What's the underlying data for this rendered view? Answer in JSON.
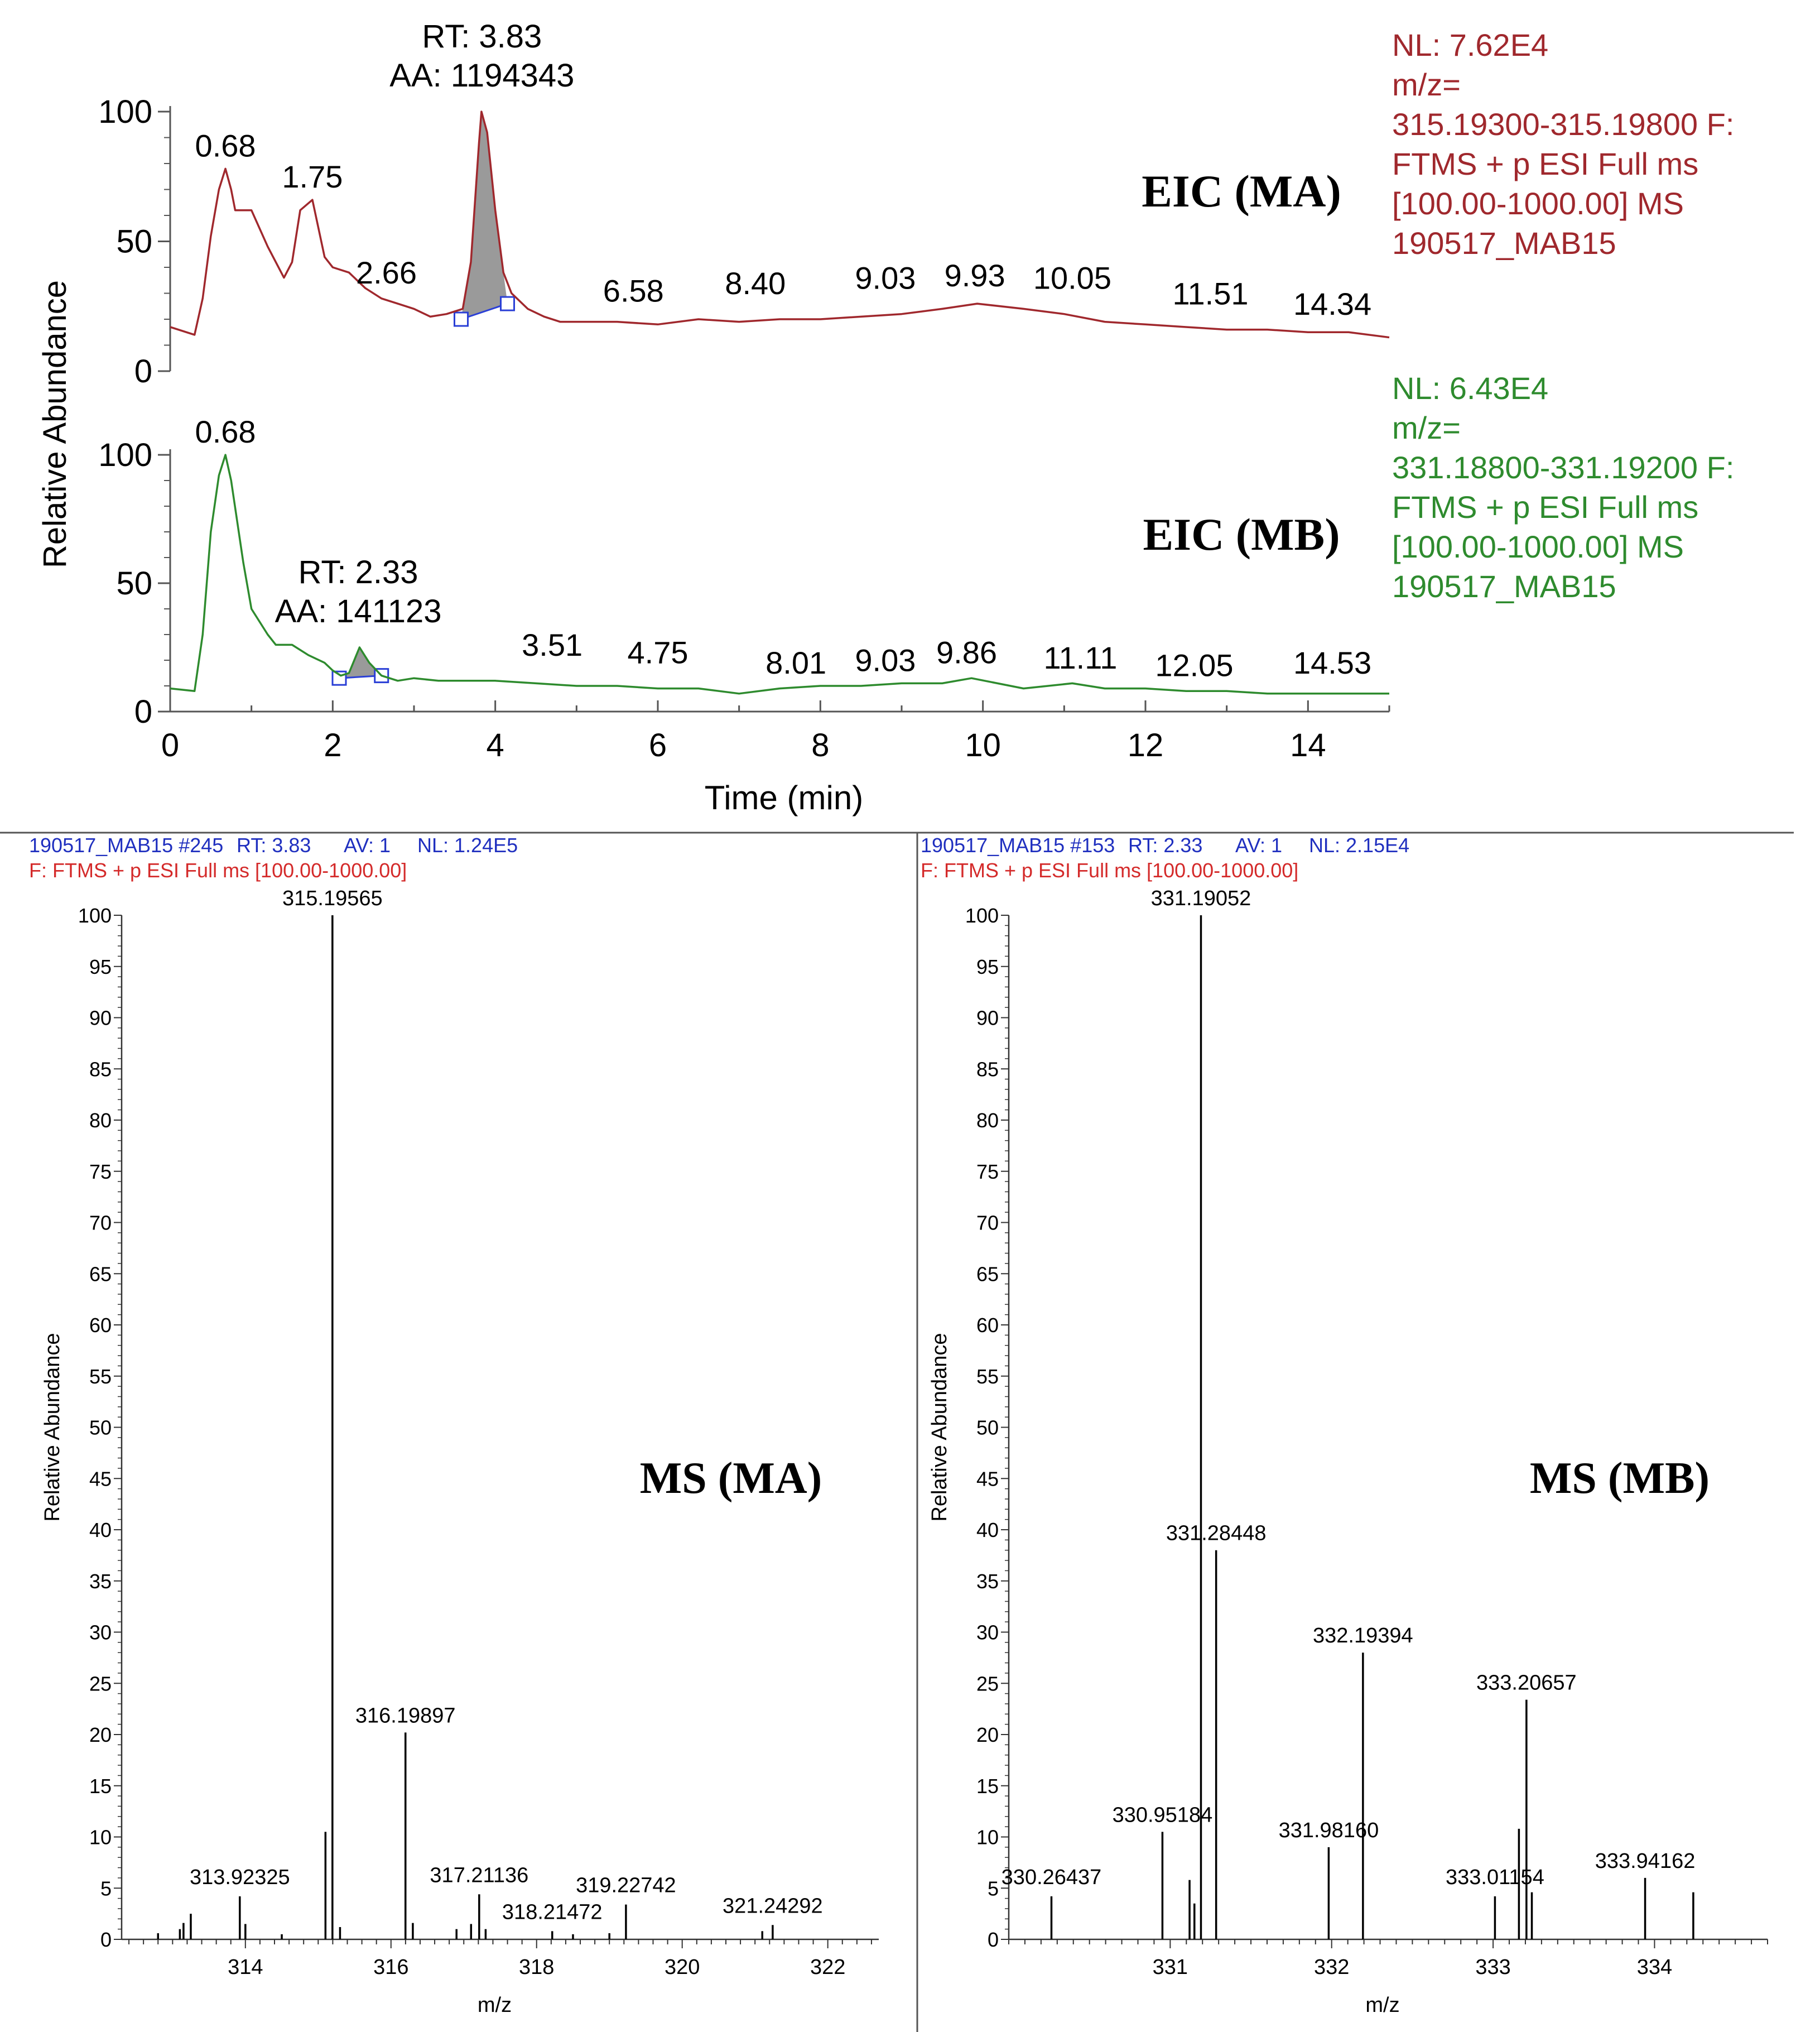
{
  "chart_data": [
    {
      "type": "line",
      "title": "EIC (MA)",
      "xlabel": "",
      "ylabel": "Relative Abundance",
      "xlim": [
        0,
        15
      ],
      "ylim": [
        0,
        100
      ],
      "x_ticks": [],
      "y_ticks": [
        "0",
        "50",
        "100"
      ],
      "color": "#a0282d",
      "info": [
        "NL: 7.62E4",
        "m/z=",
        "315.19300-315.19800 F:",
        "FTMS + p ESI Full ms",
        "[100.00-1000.00]  MS",
        "190517_MAB15"
      ],
      "peak": {
        "rt_label": "RT: 3.83",
        "aa_label": "AA: 1194343",
        "x_start": 3.58,
        "x_end": 4.15,
        "y_start": 20,
        "y_end": 26
      },
      "labels": [
        {
          "text": "0.68",
          "x": 0.68,
          "y": 78
        },
        {
          "text": "1.75",
          "x": 1.75,
          "y": 66
        },
        {
          "text": "2.66",
          "x": 2.66,
          "y": 29
        },
        {
          "text": "6.58",
          "x": 5.7,
          "y": 22
        },
        {
          "text": "8.40",
          "x": 7.2,
          "y": 25
        },
        {
          "text": "9.03",
          "x": 8.8,
          "y": 27
        },
        {
          "text": "9.93",
          "x": 9.9,
          "y": 28
        },
        {
          "text": "10.05",
          "x": 11.1,
          "y": 27
        },
        {
          "text": "11.51",
          "x": 12.8,
          "y": 21
        },
        {
          "text": "14.34",
          "x": 14.3,
          "y": 17
        }
      ],
      "series": [
        {
          "x": [
            0,
            0.3,
            0.4,
            0.5,
            0.6,
            0.68,
            0.75,
            0.8,
            1.0,
            1.2,
            1.3,
            1.4,
            1.5,
            1.6,
            1.75,
            1.9,
            2.0,
            2.2,
            2.4,
            2.6,
            2.8,
            3.0,
            3.2,
            3.4,
            3.6,
            3.7,
            3.8,
            3.83,
            3.9,
            4.0,
            4.1,
            4.2,
            4.4,
            4.6,
            4.8,
            5.0,
            5.5,
            6.0,
            6.5,
            7.0,
            7.5,
            8.0,
            8.5,
            9.0,
            9.5,
            9.93,
            10.5,
            11.0,
            11.5,
            12.0,
            12.5,
            13.0,
            13.5,
            14.0,
            14.5,
            15.0
          ],
          "y": [
            17,
            14,
            28,
            52,
            70,
            78,
            70,
            62,
            62,
            48,
            42,
            36,
            42,
            62,
            66,
            44,
            40,
            38,
            32,
            28,
            26,
            24,
            21,
            22,
            24,
            42,
            88,
            100,
            92,
            62,
            38,
            30,
            24,
            21,
            19,
            19,
            19,
            18,
            20,
            19,
            20,
            20,
            21,
            22,
            24,
            26,
            24,
            22,
            19,
            18,
            17,
            16,
            16,
            15,
            15,
            13
          ]
        }
      ]
    },
    {
      "type": "line",
      "title": "EIC (MB)",
      "xlabel": "Time (min)",
      "ylabel": "Relative Abundance",
      "xlim": [
        0,
        15
      ],
      "ylim": [
        0,
        100
      ],
      "x_ticks": [
        "0",
        "2",
        "4",
        "6",
        "8",
        "10",
        "12",
        "14"
      ],
      "y_ticks": [
        "0",
        "50",
        "100"
      ],
      "color": "#2e8b2e",
      "info": [
        "NL: 6.43E4",
        "m/z=",
        "331.18800-331.19200 F:",
        "FTMS + p ESI Full ms",
        "[100.00-1000.00]  MS",
        "190517_MAB15"
      ],
      "peak": {
        "rt_label": "RT: 2.33",
        "aa_label": "AA: 141123",
        "x_start": 2.08,
        "x_end": 2.6,
        "y_start": 13,
        "y_end": 14
      },
      "labels": [
        {
          "text": "0.68",
          "x": 0.68,
          "y": 100
        },
        {
          "text": "3.51",
          "x": 4.7,
          "y": 17
        },
        {
          "text": "4.75",
          "x": 6.0,
          "y": 14
        },
        {
          "text": "8.01",
          "x": 7.7,
          "y": 10
        },
        {
          "text": "9.03",
          "x": 8.8,
          "y": 11
        },
        {
          "text": "9.86",
          "x": 9.8,
          "y": 14
        },
        {
          "text": "11.11",
          "x": 11.2,
          "y": 12
        },
        {
          "text": "12.05",
          "x": 12.6,
          "y": 9
        },
        {
          "text": "14.53",
          "x": 14.3,
          "y": 10
        }
      ],
      "series": [
        {
          "x": [
            0,
            0.3,
            0.4,
            0.5,
            0.6,
            0.68,
            0.75,
            0.9,
            1.0,
            1.2,
            1.3,
            1.5,
            1.7,
            1.9,
            2.0,
            2.1,
            2.2,
            2.33,
            2.45,
            2.6,
            2.8,
            3.0,
            3.3,
            3.5,
            4.0,
            4.5,
            5.0,
            5.5,
            6.0,
            6.5,
            7.0,
            7.5,
            8.0,
            8.5,
            9.0,
            9.5,
            9.86,
            10.5,
            11.1,
            11.5,
            12.0,
            12.5,
            13.0,
            13.5,
            14.0,
            14.5,
            15.0
          ],
          "y": [
            9,
            8,
            30,
            70,
            92,
            100,
            90,
            58,
            40,
            30,
            26,
            26,
            22,
            19,
            16,
            14,
            15,
            25,
            19,
            14,
            12,
            13,
            12,
            12,
            12,
            11,
            10,
            10,
            9,
            9,
            7,
            9,
            10,
            10,
            11,
            11,
            13,
            9,
            11,
            9,
            9,
            8,
            8,
            7,
            7,
            7,
            7
          ]
        }
      ]
    },
    {
      "type": "bar",
      "title": "MS (MA)",
      "header_line1": [
        {
          "text": "190517_MAB15 #245",
          "color": "#1f2fbf"
        },
        {
          "text": "RT: 3.83",
          "color": "#1f2fbf"
        },
        {
          "text": "AV: 1",
          "color": "#1f2fbf"
        },
        {
          "text": "NL: 1.24E5",
          "color": "#1f2fbf"
        }
      ],
      "header_line2": "F: FTMS + p ESI Full ms [100.00-1000.00]",
      "xlabel": "m/z",
      "ylabel": "Relative Abundance",
      "xlim": [
        312.3,
        322.7
      ],
      "ylim": [
        0,
        100
      ],
      "x_ticks": [
        "314",
        "316",
        "318",
        "320",
        "322"
      ],
      "y_ticks": [
        "0",
        "5",
        "10",
        "15",
        "20",
        "25",
        "30",
        "35",
        "40",
        "45",
        "50",
        "55",
        "60",
        "65",
        "70",
        "75",
        "80",
        "85",
        "90",
        "95",
        "100"
      ],
      "peaks": [
        {
          "mz": 312.8,
          "y": 0.6
        },
        {
          "mz": 313.1,
          "y": 1.0
        },
        {
          "mz": 313.15,
          "y": 1.6
        },
        {
          "mz": 313.25,
          "y": 2.5
        },
        {
          "mz": 313.92325,
          "y": 4.2
        },
        {
          "mz": 314.0,
          "y": 1.5
        },
        {
          "mz": 314.5,
          "y": 0.5
        },
        {
          "mz": 315.1,
          "y": 10.5
        },
        {
          "mz": 315.19565,
          "y": 100
        },
        {
          "mz": 315.3,
          "y": 1.2
        },
        {
          "mz": 316.19897,
          "y": 20.2
        },
        {
          "mz": 316.3,
          "y": 1.6
        },
        {
          "mz": 316.9,
          "y": 1.0
        },
        {
          "mz": 317.1,
          "y": 1.5
        },
        {
          "mz": 317.21136,
          "y": 4.4
        },
        {
          "mz": 317.3,
          "y": 1.0
        },
        {
          "mz": 318.21472,
          "y": 0.8
        },
        {
          "mz": 318.5,
          "y": 0.5
        },
        {
          "mz": 319.22742,
          "y": 3.4
        },
        {
          "mz": 319.0,
          "y": 0.6
        },
        {
          "mz": 321.1,
          "y": 0.8
        },
        {
          "mz": 321.24292,
          "y": 1.4
        }
      ],
      "labels": [
        {
          "text": "315.19565",
          "mz": 315.19565,
          "y": 100
        },
        {
          "text": "316.19897",
          "mz": 316.19897,
          "y": 20.2
        },
        {
          "text": "313.92325",
          "mz": 313.92325,
          "y": 4.2
        },
        {
          "text": "317.21136",
          "mz": 317.21136,
          "y": 4.4
        },
        {
          "text": "318.21472",
          "mz": 318.21472,
          "y": 0.8
        },
        {
          "text": "319.22742",
          "mz": 319.22742,
          "y": 3.4
        },
        {
          "text": "321.24292",
          "mz": 321.24292,
          "y": 1.4
        }
      ]
    },
    {
      "type": "bar",
      "title": "MS (MB)",
      "header_line1": [
        {
          "text": "190517_MAB15 #153",
          "color": "#1f2fbf"
        },
        {
          "text": "RT: 2.33",
          "color": "#1f2fbf"
        },
        {
          "text": "AV: 1",
          "color": "#1f2fbf"
        },
        {
          "text": "NL: 2.15E4",
          "color": "#1f2fbf"
        }
      ],
      "header_line2": "F: FTMS + p ESI Full ms [100.00-1000.00]",
      "xlabel": "m/z",
      "ylabel": "Relative Abundance",
      "xlim": [
        330.0,
        334.7
      ],
      "ylim": [
        0,
        100
      ],
      "x_ticks": [
        "331",
        "332",
        "333",
        "334"
      ],
      "y_ticks": [
        "0",
        "5",
        "10",
        "15",
        "20",
        "25",
        "30",
        "35",
        "40",
        "45",
        "50",
        "55",
        "60",
        "65",
        "70",
        "75",
        "80",
        "85",
        "90",
        "95",
        "100"
      ],
      "peaks": [
        {
          "mz": 330.26437,
          "y": 4.2
        },
        {
          "mz": 330.95184,
          "y": 10.5
        },
        {
          "mz": 331.12,
          "y": 5.8
        },
        {
          "mz": 331.15,
          "y": 3.5
        },
        {
          "mz": 331.19052,
          "y": 100
        },
        {
          "mz": 331.28448,
          "y": 38.0
        },
        {
          "mz": 331.9816,
          "y": 9.0
        },
        {
          "mz": 332.19394,
          "y": 28.0
        },
        {
          "mz": 333.01154,
          "y": 4.2
        },
        {
          "mz": 333.16,
          "y": 10.8
        },
        {
          "mz": 333.20657,
          "y": 23.4
        },
        {
          "mz": 333.24,
          "y": 4.6
        },
        {
          "mz": 333.94162,
          "y": 6.0
        },
        {
          "mz": 334.24,
          "y": 4.6
        }
      ],
      "labels": [
        {
          "text": "331.19052",
          "mz": 331.19052,
          "y": 100
        },
        {
          "text": "331.28448",
          "mz": 331.28448,
          "y": 38.0
        },
        {
          "text": "332.19394",
          "mz": 332.19394,
          "y": 28.0
        },
        {
          "text": "333.20657",
          "mz": 333.20657,
          "y": 23.4
        },
        {
          "text": "330.95184",
          "mz": 330.95184,
          "y": 10.5
        },
        {
          "text": "331.98160",
          "mz": 331.9816,
          "y": 9.0
        },
        {
          "text": "330.26437",
          "mz": 330.26437,
          "y": 4.2
        },
        {
          "text": "333.01154",
          "mz": 333.01154,
          "y": 4.2
        },
        {
          "text": "333.94162",
          "mz": 333.94162,
          "y": 6.0
        }
      ]
    }
  ]
}
